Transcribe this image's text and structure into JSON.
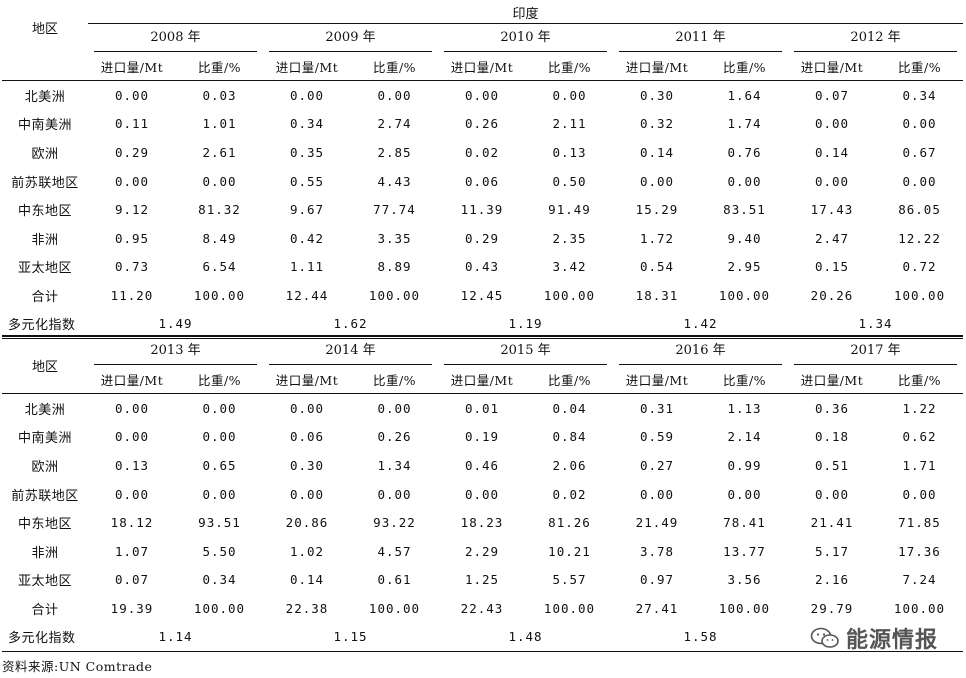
{
  "header": {
    "country": "印度",
    "region_label": "地区",
    "col_import": "进口量/Mt",
    "col_share": "比重/%"
  },
  "table1": {
    "years": [
      "2008 年",
      "2009 年",
      "2010 年",
      "2011 年",
      "2012 年"
    ],
    "rows": [
      {
        "region": "北美洲",
        "values": [
          "0.00",
          "0.03",
          "0.00",
          "0.00",
          "0.00",
          "0.00",
          "0.30",
          "1.64",
          "0.07",
          "0.34"
        ]
      },
      {
        "region": "中南美洲",
        "values": [
          "0.11",
          "1.01",
          "0.34",
          "2.74",
          "0.26",
          "2.11",
          "0.32",
          "1.74",
          "0.00",
          "0.00"
        ]
      },
      {
        "region": "欧洲",
        "values": [
          "0.29",
          "2.61",
          "0.35",
          "2.85",
          "0.02",
          "0.13",
          "0.14",
          "0.76",
          "0.14",
          "0.67"
        ]
      },
      {
        "region": "前苏联地区",
        "values": [
          "0.00",
          "0.00",
          "0.55",
          "4.43",
          "0.06",
          "0.50",
          "0.00",
          "0.00",
          "0.00",
          "0.00"
        ]
      },
      {
        "region": "中东地区",
        "values": [
          "9.12",
          "81.32",
          "9.67",
          "77.74",
          "11.39",
          "91.49",
          "15.29",
          "83.51",
          "17.43",
          "86.05"
        ]
      },
      {
        "region": "非洲",
        "values": [
          "0.95",
          "8.49",
          "0.42",
          "3.35",
          "0.29",
          "2.35",
          "1.72",
          "9.40",
          "2.47",
          "12.22"
        ]
      },
      {
        "region": "亚太地区",
        "values": [
          "0.73",
          "6.54",
          "1.11",
          "8.89",
          "0.43",
          "3.42",
          "0.54",
          "2.95",
          "0.15",
          "0.72"
        ]
      },
      {
        "region": "合计",
        "values": [
          "11.20",
          "100.00",
          "12.44",
          "100.00",
          "12.45",
          "100.00",
          "18.31",
          "100.00",
          "20.26",
          "100.00"
        ]
      }
    ],
    "diversity_label": "多元化指数",
    "diversity": [
      "1.49",
      "1.62",
      "1.19",
      "1.42",
      "1.34"
    ]
  },
  "table2": {
    "years": [
      "2013 年",
      "2014 年",
      "2015 年",
      "2016 年",
      "2017 年"
    ],
    "rows": [
      {
        "region": "北美洲",
        "values": [
          "0.00",
          "0.00",
          "0.00",
          "0.00",
          "0.01",
          "0.04",
          "0.31",
          "1.13",
          "0.36",
          "1.22"
        ]
      },
      {
        "region": "中南美洲",
        "values": [
          "0.00",
          "0.00",
          "0.06",
          "0.26",
          "0.19",
          "0.84",
          "0.59",
          "2.14",
          "0.18",
          "0.62"
        ]
      },
      {
        "region": "欧洲",
        "values": [
          "0.13",
          "0.65",
          "0.30",
          "1.34",
          "0.46",
          "2.06",
          "0.27",
          "0.99",
          "0.51",
          "1.71"
        ]
      },
      {
        "region": "前苏联地区",
        "values": [
          "0.00",
          "0.00",
          "0.00",
          "0.00",
          "0.00",
          "0.02",
          "0.00",
          "0.00",
          "0.00",
          "0.00"
        ]
      },
      {
        "region": "中东地区",
        "values": [
          "18.12",
          "93.51",
          "20.86",
          "93.22",
          "18.23",
          "81.26",
          "21.49",
          "78.41",
          "21.41",
          "71.85"
        ]
      },
      {
        "region": "非洲",
        "values": [
          "1.07",
          "5.50",
          "1.02",
          "4.57",
          "2.29",
          "10.21",
          "3.78",
          "13.77",
          "5.17",
          "17.36"
        ]
      },
      {
        "region": "亚太地区",
        "values": [
          "0.07",
          "0.34",
          "0.14",
          "0.61",
          "1.25",
          "5.57",
          "0.97",
          "3.56",
          "2.16",
          "7.24"
        ]
      },
      {
        "region": "合计",
        "values": [
          "19.39",
          "100.00",
          "22.38",
          "100.00",
          "22.43",
          "100.00",
          "27.41",
          "100.00",
          "29.79",
          "100.00"
        ]
      }
    ],
    "diversity_label": "多元化指数",
    "diversity": [
      "1.14",
      "1.15",
      "1.48",
      "1.58",
      ""
    ]
  },
  "source": "资料来源:UN Comtrade",
  "watermark": {
    "icon": "wechat-icon",
    "text": "能源情报"
  }
}
